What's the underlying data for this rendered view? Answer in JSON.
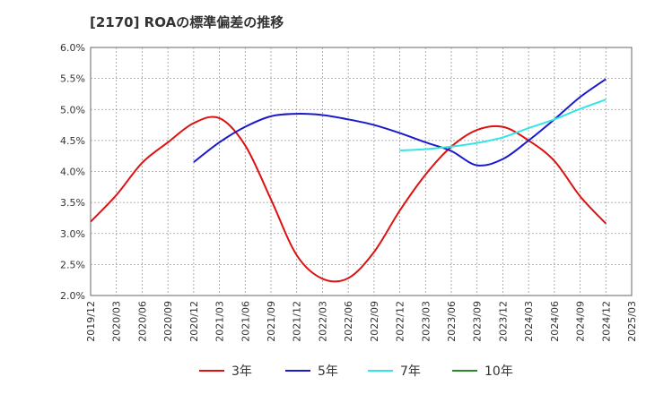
{
  "chart_data": {
    "type": "line",
    "title": "[2170]  ROAの標準偏差の推移",
    "xlabel": "",
    "ylabel": "",
    "ylim": [
      2.0,
      6.0
    ],
    "yticks": [
      2.0,
      2.5,
      3.0,
      3.5,
      4.0,
      4.5,
      5.0,
      5.5,
      6.0
    ],
    "ytick_labels": [
      "2.0%",
      "2.5%",
      "3.0%",
      "3.5%",
      "4.0%",
      "4.5%",
      "5.0%",
      "5.5%",
      "6.0%"
    ],
    "xticks": [
      "2019/12",
      "2020/03",
      "2020/06",
      "2020/09",
      "2020/12",
      "2021/03",
      "2021/06",
      "2021/09",
      "2021/12",
      "2022/03",
      "2022/06",
      "2022/09",
      "2022/12",
      "2023/03",
      "2023/06",
      "2023/09",
      "2023/12",
      "2024/03",
      "2024/06",
      "2024/09",
      "2024/12",
      "2025/03"
    ],
    "grid": true,
    "legend_position": "bottom",
    "series": [
      {
        "name": "3年",
        "color": "#dd1111",
        "x": [
          "2019/12",
          "2020/03",
          "2020/06",
          "2020/09",
          "2020/12",
          "2021/03",
          "2021/06",
          "2021/09",
          "2021/12",
          "2022/03",
          "2022/06",
          "2022/09",
          "2022/12",
          "2023/03",
          "2023/06",
          "2023/09",
          "2023/12",
          "2024/03",
          "2024/06",
          "2024/09",
          "2024/12"
        ],
        "values": [
          3.19,
          3.62,
          4.14,
          4.47,
          4.78,
          4.86,
          4.42,
          3.55,
          2.65,
          2.27,
          2.28,
          2.7,
          3.37,
          3.95,
          4.4,
          4.67,
          4.72,
          4.5,
          4.17,
          3.6,
          3.16
        ]
      },
      {
        "name": "5年",
        "color": "#1a1acc",
        "x": [
          "2020/12",
          "2021/03",
          "2021/06",
          "2021/09",
          "2021/12",
          "2022/03",
          "2022/06",
          "2022/09",
          "2022/12",
          "2023/03",
          "2023/06",
          "2023/09",
          "2023/12",
          "2024/03",
          "2024/06",
          "2024/09",
          "2024/12"
        ],
        "values": [
          4.15,
          4.47,
          4.72,
          4.89,
          4.93,
          4.91,
          4.84,
          4.75,
          4.62,
          4.47,
          4.33,
          4.1,
          4.2,
          4.5,
          4.84,
          5.2,
          5.49
        ]
      },
      {
        "name": "7年",
        "color": "#33e5e5",
        "x": [
          "2022/12",
          "2023/03",
          "2023/06",
          "2023/09",
          "2023/12",
          "2024/03",
          "2024/06",
          "2024/09",
          "2024/12"
        ],
        "values": [
          4.34,
          4.36,
          4.4,
          4.46,
          4.55,
          4.7,
          4.84,
          5.01,
          5.16
        ]
      },
      {
        "name": "10年",
        "color": "#2a8a2a",
        "x": [],
        "values": []
      }
    ]
  }
}
